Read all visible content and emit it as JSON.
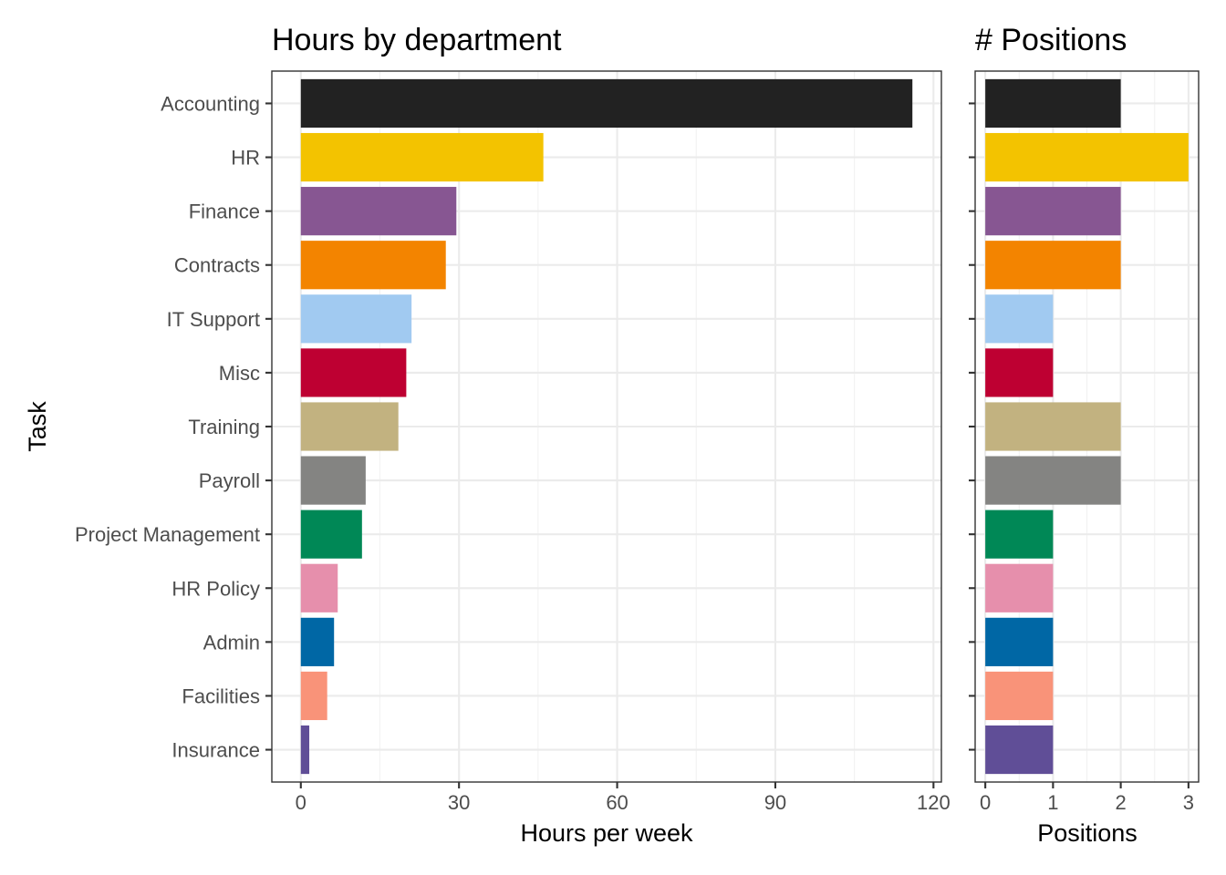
{
  "chart_data": [
    {
      "type": "bar",
      "orientation": "horizontal",
      "title": "Hours by department",
      "xlabel": "Hours per week",
      "ylabel": "Task",
      "xlim": [
        -5.5,
        121.5
      ],
      "xticks": [
        0,
        30,
        60,
        90,
        120
      ],
      "grid": true,
      "categories": [
        "Accounting",
        "HR",
        "Finance",
        "Contracts",
        "IT Support",
        "Misc",
        "Training",
        "Payroll",
        "Project Management",
        "HR Policy",
        "Admin",
        "Facilities",
        "Insurance"
      ],
      "values": [
        116,
        46,
        29.5,
        27.5,
        21,
        20,
        18.5,
        12.3,
        11.6,
        7,
        6.3,
        5,
        1.6
      ]
    },
    {
      "type": "bar",
      "orientation": "horizontal",
      "title": "# Positions",
      "xlabel": "Positions",
      "ylabel": "",
      "xlim": [
        -0.15,
        3.15
      ],
      "xticks": [
        0,
        1,
        2,
        3
      ],
      "grid": true,
      "categories": [
        "Accounting",
        "HR",
        "Finance",
        "Contracts",
        "IT Support",
        "Misc",
        "Training",
        "Payroll",
        "Project Management",
        "HR Policy",
        "Admin",
        "Facilities",
        "Insurance"
      ],
      "values": [
        2,
        3,
        2,
        2,
        1,
        1,
        2,
        2,
        1,
        1,
        1,
        1,
        1
      ]
    }
  ],
  "colors": {
    "Accounting": "#222222",
    "HR": "#F3C300",
    "Finance": "#875692",
    "Contracts": "#F38400",
    "IT Support": "#A1CAF1",
    "Misc": "#BE0032",
    "Training": "#C2B280",
    "Payroll": "#848482",
    "Project Management": "#008856",
    "HR Policy": "#E68FAC",
    "Admin": "#0067A5",
    "Facilities": "#F99379",
    "Insurance": "#604E97"
  }
}
